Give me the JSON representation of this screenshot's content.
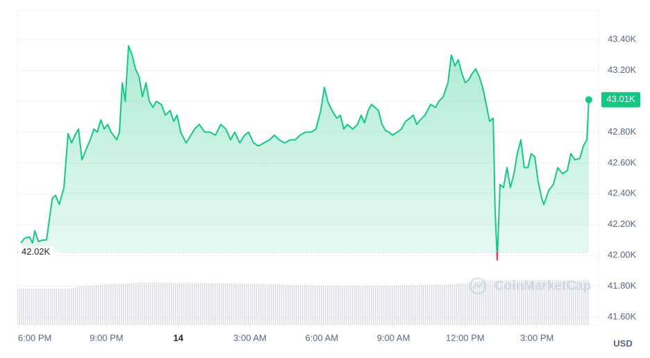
{
  "chart_data": {
    "type": "line",
    "currency": "USD",
    "watermark": "CoinMarketCap",
    "xlim": [
      -0.73,
      23.58
    ],
    "ylim": [
      41.55,
      43.59
    ],
    "grid": true,
    "xticks": [
      {
        "value": 0,
        "label": "6:00 PM"
      },
      {
        "value": 3,
        "label": "9:00 PM"
      },
      {
        "value": 6,
        "label": "14"
      },
      {
        "value": 9,
        "label": "3:00 AM"
      },
      {
        "value": 12,
        "label": "6:00 AM"
      },
      {
        "value": 15,
        "label": "9:00 AM"
      },
      {
        "value": 18,
        "label": "12:00 PM"
      },
      {
        "value": 21,
        "label": "3:00 PM"
      }
    ],
    "yticks": [
      {
        "value": 41.6,
        "label": "41.60K"
      },
      {
        "value": 41.8,
        "label": "41.80K"
      },
      {
        "value": 42.0,
        "label": "42.00K"
      },
      {
        "value": 42.2,
        "label": "42.20K"
      },
      {
        "value": 42.4,
        "label": "42.40K"
      },
      {
        "value": 42.6,
        "label": "42.60K"
      },
      {
        "value": 42.8,
        "label": "42.80K"
      },
      {
        "value": 43.0,
        "label": "43.00K"
      },
      {
        "value": 43.2,
        "label": "43.20K"
      },
      {
        "value": 43.4,
        "label": "43.40K"
      }
    ],
    "open_price": {
      "value": 42.02,
      "label": "42.02K"
    },
    "current_price": {
      "value": 43.01,
      "label": "43.01K"
    },
    "up_color": "#16c784",
    "down_color": "#ea3943",
    "x": [
      -0.58,
      -0.44,
      -0.23,
      -0.09,
      0,
      0.15,
      0.35,
      0.49,
      0.73,
      0.87,
      1.02,
      1.22,
      1.39,
      1.54,
      1.68,
      1.83,
      1.97,
      2.15,
      2.32,
      2.47,
      2.61,
      2.76,
      2.9,
      3.05,
      3.19,
      3.43,
      3.54,
      3.66,
      3.78,
      3.92,
      4.07,
      4.21,
      4.36,
      4.5,
      4.65,
      4.79,
      4.94,
      5.08,
      5.29,
      5.46,
      5.66,
      5.81,
      5.95,
      6.1,
      6.33,
      6.53,
      6.68,
      6.88,
      7.11,
      7.32,
      7.55,
      7.78,
      7.99,
      8.19,
      8.36,
      8.57,
      8.77,
      8.94,
      9.15,
      9.35,
      9.58,
      9.82,
      10.02,
      10.22,
      10.45,
      10.69,
      10.89,
      11.09,
      11.33,
      11.56,
      11.76,
      11.96,
      12.11,
      12.25,
      12.43,
      12.63,
      12.78,
      12.92,
      13.07,
      13.3,
      13.5,
      13.65,
      13.79,
      13.94,
      14.08,
      14.23,
      14.37,
      14.52,
      14.67,
      14.81,
      14.96,
      15.16,
      15.33,
      15.51,
      15.68,
      15.83,
      15.97,
      16.12,
      16.32,
      16.55,
      16.76,
      16.9,
      17.08,
      17.28,
      17.42,
      17.57,
      17.71,
      17.86,
      18.0,
      18.15,
      18.29,
      18.44,
      18.59,
      18.73,
      18.88,
      19.02,
      19.17,
      19.25,
      19.34,
      19.46,
      19.6,
      19.75,
      19.89,
      20.04,
      20.18,
      20.33,
      20.47,
      20.62,
      20.76,
      20.91,
      21.05,
      21.2,
      21.29,
      21.49,
      21.69,
      21.87,
      22.07,
      22.27,
      22.42,
      22.59,
      22.8,
      22.94,
      23.09,
      23.17
    ],
    "values": [
      42.08,
      42.11,
      42.12,
      42.08,
      42.16,
      42.09,
      42.1,
      42.1,
      42.37,
      42.39,
      42.33,
      42.44,
      42.79,
      42.73,
      42.78,
      42.82,
      42.62,
      42.69,
      42.75,
      42.82,
      42.8,
      42.88,
      42.82,
      42.85,
      42.8,
      42.75,
      42.8,
      43.12,
      43.0,
      43.36,
      43.3,
      43.21,
      43.16,
      43.03,
      43.12,
      43.0,
      42.96,
      43.0,
      42.98,
      42.91,
      42.94,
      42.87,
      42.91,
      42.8,
      42.73,
      42.78,
      42.82,
      42.85,
      42.8,
      42.8,
      42.78,
      42.85,
      42.82,
      42.75,
      42.8,
      42.73,
      42.78,
      42.8,
      42.73,
      42.71,
      42.73,
      42.75,
      42.78,
      42.75,
      42.73,
      42.75,
      42.75,
      42.78,
      42.8,
      42.8,
      42.82,
      42.94,
      43.09,
      43.0,
      42.94,
      42.89,
      42.91,
      42.82,
      42.85,
      42.82,
      42.85,
      42.91,
      42.86,
      42.94,
      42.98,
      42.96,
      42.94,
      42.85,
      42.81,
      42.8,
      42.78,
      42.8,
      42.82,
      42.87,
      42.89,
      42.91,
      42.85,
      42.88,
      42.91,
      42.98,
      42.96,
      43.0,
      43.03,
      43.12,
      43.3,
      43.23,
      43.27,
      43.18,
      43.12,
      43.14,
      43.18,
      43.21,
      43.16,
      43.09,
      42.98,
      42.87,
      42.89,
      42.3,
      41.97,
      42.46,
      42.44,
      42.57,
      42.44,
      42.53,
      42.66,
      42.75,
      42.57,
      42.57,
      42.66,
      42.64,
      42.48,
      42.37,
      42.33,
      42.42,
      42.46,
      42.57,
      42.53,
      42.55,
      42.66,
      42.62,
      42.63,
      42.71,
      42.75,
      43.01
    ]
  }
}
